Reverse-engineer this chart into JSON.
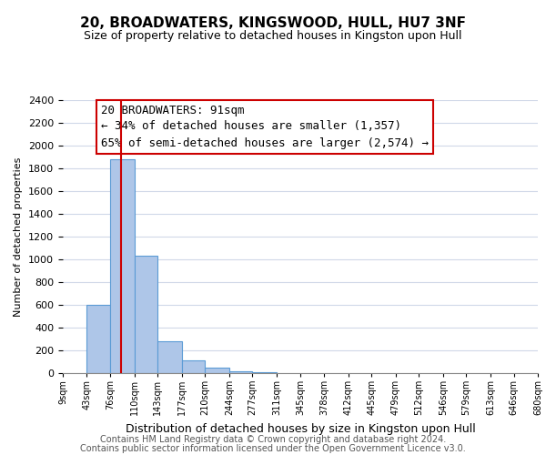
{
  "title": "20, BROADWATERS, KINGSWOOD, HULL, HU7 3NF",
  "subtitle": "Size of property relative to detached houses in Kingston upon Hull",
  "xlabel": "Distribution of detached houses by size in Kingston upon Hull",
  "ylabel": "Number of detached properties",
  "bar_left_edges": [
    9,
    43,
    76,
    110,
    143,
    177,
    210,
    244,
    277,
    311,
    345,
    378,
    412,
    445,
    479,
    512,
    546,
    579,
    613,
    646
  ],
  "bar_widths": [
    34,
    33,
    34,
    33,
    34,
    33,
    34,
    33,
    34,
    34,
    33,
    34,
    33,
    34,
    33,
    34,
    33,
    34,
    33,
    34
  ],
  "bar_heights": [
    0,
    600,
    1880,
    1030,
    280,
    110,
    45,
    20,
    5,
    0,
    0,
    0,
    0,
    0,
    0,
    0,
    0,
    0,
    0,
    0
  ],
  "bar_color": "#aec6e8",
  "bar_edgecolor": "#5b9bd5",
  "property_line_x": 91,
  "property_line_color": "#cc0000",
  "annotation_text": "20 BROADWATERS: 91sqm\n← 34% of detached houses are smaller (1,357)\n65% of semi-detached houses are larger (2,574) →",
  "annotation_box_color": "#ffffff",
  "annotation_box_edgecolor": "#cc0000",
  "xlim": [
    9,
    680
  ],
  "ylim": [
    0,
    2400
  ],
  "yticks": [
    0,
    200,
    400,
    600,
    800,
    1000,
    1200,
    1400,
    1600,
    1800,
    2000,
    2200,
    2400
  ],
  "xtick_labels": [
    "9sqm",
    "43sqm",
    "76sqm",
    "110sqm",
    "143sqm",
    "177sqm",
    "210sqm",
    "244sqm",
    "277sqm",
    "311sqm",
    "345sqm",
    "378sqm",
    "412sqm",
    "445sqm",
    "479sqm",
    "512sqm",
    "546sqm",
    "579sqm",
    "613sqm",
    "646sqm",
    "680sqm"
  ],
  "xtick_positions": [
    9,
    43,
    76,
    110,
    143,
    177,
    210,
    244,
    277,
    311,
    345,
    378,
    412,
    445,
    479,
    512,
    546,
    579,
    613,
    646,
    680
  ],
  "footer_line1": "Contains HM Land Registry data © Crown copyright and database right 2024.",
  "footer_line2": "Contains public sector information licensed under the Open Government Licence v3.0.",
  "background_color": "#ffffff",
  "grid_color": "#d0d8e8",
  "title_fontsize": 11,
  "subtitle_fontsize": 9,
  "annotation_fontsize": 9,
  "ylabel_fontsize": 8,
  "xlabel_fontsize": 9,
  "footer_fontsize": 7
}
